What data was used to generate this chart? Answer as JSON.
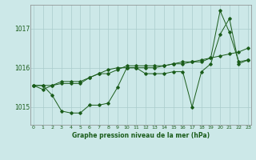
{
  "title": "Graphe pression niveau de la mer (hPa)",
  "background_color": "#cce8e8",
  "grid_color": "#aacccc",
  "line_color": "#1a5c1a",
  "x_labels": [
    "0",
    "1",
    "2",
    "3",
    "4",
    "5",
    "6",
    "7",
    "8",
    "9",
    "10",
    "11",
    "12",
    "13",
    "14",
    "15",
    "16",
    "17",
    "18",
    "19",
    "20",
    "21",
    "22",
    "23"
  ],
  "ylim": [
    1014.55,
    1017.6
  ],
  "yticks": [
    1015,
    1016,
    1017
  ],
  "series1": [
    1015.55,
    1015.55,
    1015.3,
    1014.9,
    1014.85,
    1014.85,
    1015.05,
    1015.05,
    1015.1,
    1015.5,
    1016.0,
    1016.0,
    1015.85,
    1015.85,
    1015.85,
    1015.9,
    1015.9,
    1015.0,
    1015.9,
    1016.1,
    1016.85,
    1017.25,
    1016.1,
    1016.2
  ],
  "series2": [
    1015.55,
    1015.45,
    1015.55,
    1015.6,
    1015.6,
    1015.6,
    1015.75,
    1015.85,
    1015.85,
    1015.95,
    1016.05,
    1016.05,
    1016.05,
    1016.05,
    1016.05,
    1016.1,
    1016.15,
    1016.15,
    1016.15,
    1016.25,
    1016.3,
    1016.35,
    1016.4,
    1016.5
  ],
  "series3": [
    1015.55,
    1015.55,
    1015.55,
    1015.65,
    1015.65,
    1015.65,
    1015.75,
    1015.85,
    1015.95,
    1016.0,
    1016.0,
    1016.0,
    1016.0,
    1016.0,
    1016.05,
    1016.1,
    1016.1,
    1016.15,
    1016.2,
    1016.25,
    1017.45,
    1016.9,
    1016.15,
    1016.2
  ]
}
